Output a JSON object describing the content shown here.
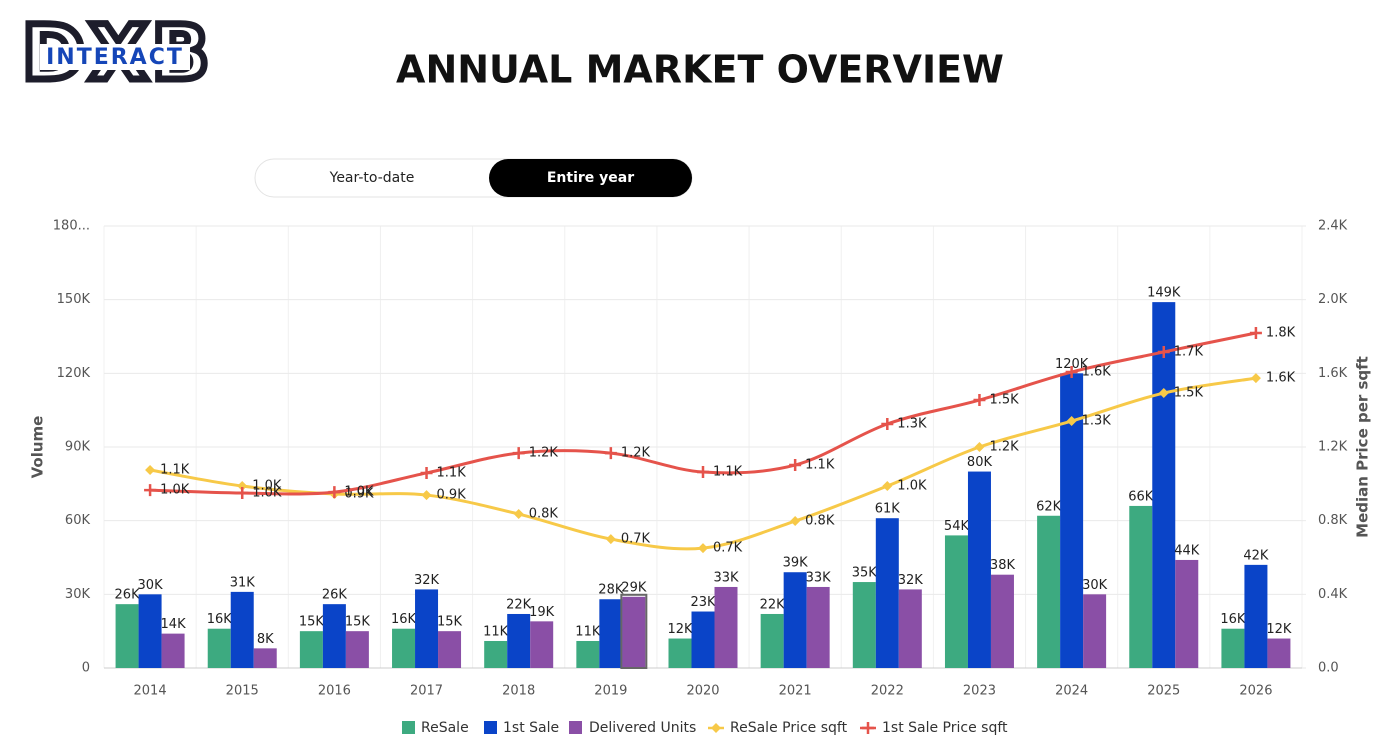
{
  "logo": {
    "text": "DXB",
    "subtext": "INTERACT"
  },
  "toggle": {
    "options": [
      "Year-to-date",
      "Entire year"
    ],
    "active": 1
  },
  "chart_data": {
    "type": "combo",
    "title": "ANNUAL MARKET OVERVIEW",
    "y_label": "Volume",
    "y2_label": "Median Price per sqft",
    "categories": [
      "2014",
      "2015",
      "2016",
      "2017",
      "2018",
      "2019",
      "2020",
      "2021",
      "2022",
      "2023",
      "2024",
      "2025",
      "2026"
    ],
    "ylim": [
      0,
      180000
    ],
    "yticks": [
      0,
      {
        "value": 30000,
        "label": "30K"
      },
      {
        "value": 60000,
        "label": "60K"
      },
      {
        "value": 90000,
        "label": "90K"
      },
      {
        "value": 120000,
        "label": "120K"
      },
      {
        "value": 150000,
        "label": "150K"
      },
      {
        "value": 180000,
        "label": "180..."
      }
    ],
    "y2lim": [
      0,
      2400
    ],
    "y2ticks": [
      {
        "value": 0,
        "label": "0.0"
      },
      {
        "value": 400,
        "label": "0.4K"
      },
      {
        "value": 800,
        "label": "0.8K"
      },
      {
        "value": 1200,
        "label": "1.2K"
      },
      {
        "value": 1600,
        "label": "1.6K"
      },
      {
        "value": 2000,
        "label": "2.0K"
      },
      {
        "value": 2400,
        "label": "2.4K"
      }
    ],
    "grid": true,
    "series": [
      {
        "name": "ReSale",
        "type": "bar",
        "color": "#3daa80",
        "values": [
          26000,
          16000,
          15000,
          16000,
          11000,
          11000,
          12000,
          22000,
          35000,
          54000,
          62000,
          66000,
          16000
        ],
        "value_labels": [
          "26K",
          "16K",
          "15K",
          "16K",
          "11K",
          "11K",
          "12K",
          "22K",
          "35K",
          "54K",
          "62K",
          "66K",
          "16K"
        ]
      },
      {
        "name": "1st Sale",
        "type": "bar",
        "color": "#0a44c8",
        "values": [
          30000,
          31000,
          26000,
          32000,
          22000,
          28000,
          23000,
          39000,
          61000,
          80000,
          120000,
          149000,
          42000
        ],
        "value_labels": [
          "30K",
          "31K",
          "26K",
          "32K",
          "22K",
          "28K",
          "23K",
          "39K",
          "61K",
          "80K",
          "120K",
          "149K",
          "42K"
        ]
      },
      {
        "name": "Delivered Units",
        "type": "bar",
        "color": "#8a4fa6",
        "values": [
          14000,
          8000,
          15000,
          15000,
          19000,
          29000,
          33000,
          33000,
          32000,
          38000,
          30000,
          44000,
          12000
        ],
        "value_labels": [
          "14K",
          "8K",
          "15K",
          "15K",
          "19K",
          "29K",
          "33K",
          "33K",
          "32K",
          "38K",
          "30K",
          "44K",
          "12K"
        ]
      },
      {
        "name": "ReSale Price sqft",
        "type": "line",
        "axis": "y2",
        "marker": "diamond",
        "color": "#f7c948",
        "values": [
          1075,
          988,
          945,
          939,
          836,
          700,
          651,
          798,
          988,
          1200,
          1341,
          1493,
          1574
        ],
        "value_labels": [
          "1.1K",
          "1.0K",
          "0.9K",
          "0.9K",
          "0.8K",
          "0.7K",
          "0.7K",
          "0.8K",
          "1.0K",
          "1.2K",
          "1.3K",
          "1.5K",
          "1.6K"
        ]
      },
      {
        "name": "1st Sale Price sqft",
        "type": "line",
        "axis": "y2",
        "marker": "plus",
        "color": "#e5534b",
        "values": [
          966,
          950,
          955,
          1059,
          1167,
          1167,
          1064,
          1102,
          1325,
          1455,
          1607,
          1716,
          1819
        ],
        "value_labels": [
          "1.0K",
          "1.0K",
          "1.0K",
          "1.1K",
          "1.2K",
          "1.2K",
          "1.1K",
          "1.1K",
          "1.3K",
          "1.5K",
          "1.6K",
          "1.7K",
          "1.8K"
        ]
      }
    ]
  }
}
